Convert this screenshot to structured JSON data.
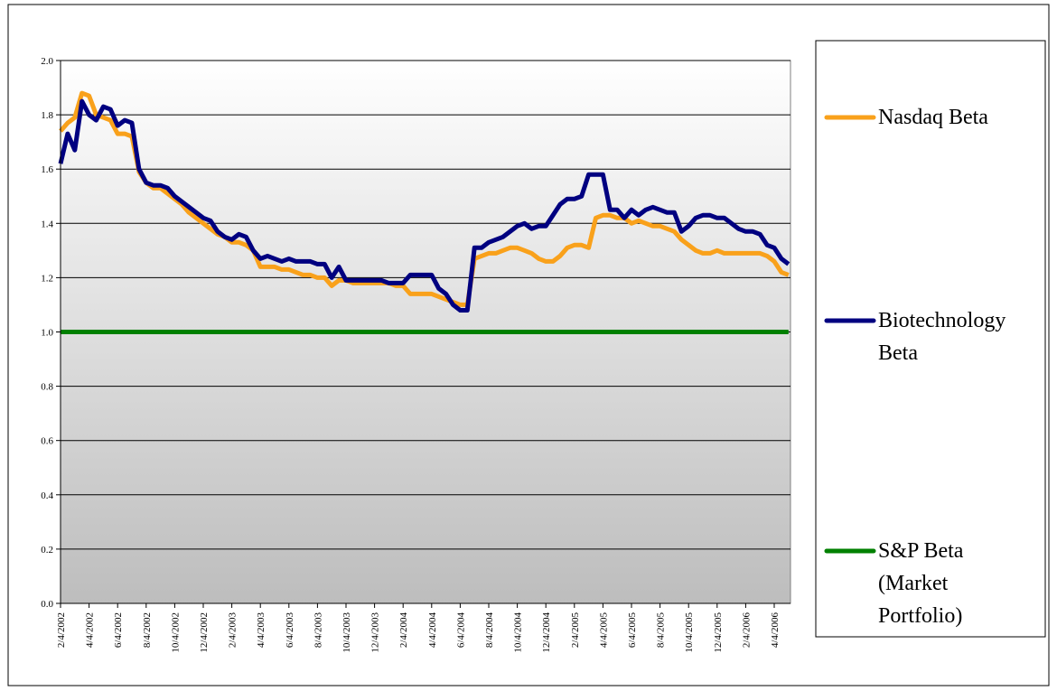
{
  "chart_data": {
    "type": "line",
    "categories": [
      "2/4/2002",
      null,
      null,
      null,
      "4/4/2002",
      null,
      null,
      null,
      "6/4/2002",
      null,
      null,
      null,
      "8/4/2002",
      null,
      null,
      null,
      "10/4/2002",
      null,
      null,
      null,
      "12/4/2002",
      null,
      null,
      null,
      "2/4/2003",
      null,
      null,
      null,
      "4/4/2003",
      null,
      null,
      null,
      "6/4/2003",
      null,
      null,
      null,
      "8/4/2003",
      null,
      null,
      null,
      "10/4/2003",
      null,
      null,
      null,
      "12/4/2003",
      null,
      null,
      null,
      "2/4/2004",
      null,
      null,
      null,
      "4/4/2004",
      null,
      null,
      null,
      "6/4/2004",
      null,
      null,
      null,
      "8/4/2004",
      null,
      null,
      null,
      "10/4/2004",
      null,
      null,
      null,
      "12/4/2004",
      null,
      null,
      null,
      "2/4/2005",
      null,
      null,
      null,
      "4/4/2005",
      null,
      null,
      null,
      "6/4/2005",
      null,
      null,
      null,
      "8/4/2005",
      null,
      null,
      null,
      "10/4/2005",
      null,
      null,
      null,
      "12/4/2005",
      null,
      null,
      null,
      "2/4/2006",
      null,
      null,
      null,
      "4/4/2006",
      null,
      null
    ],
    "series": [
      {
        "name": "Nasdaq Beta",
        "color": "#f9a11b",
        "values": [
          1.74,
          1.77,
          1.79,
          1.88,
          1.87,
          1.8,
          1.79,
          1.78,
          1.73,
          1.73,
          1.72,
          1.59,
          1.55,
          1.53,
          1.53,
          1.51,
          1.49,
          1.47,
          1.44,
          1.42,
          1.4,
          1.38,
          1.36,
          1.35,
          1.33,
          1.33,
          1.32,
          1.3,
          1.24,
          1.24,
          1.24,
          1.23,
          1.23,
          1.22,
          1.21,
          1.21,
          1.2,
          1.2,
          1.17,
          1.19,
          1.19,
          1.18,
          1.18,
          1.18,
          1.18,
          1.18,
          1.18,
          1.17,
          1.17,
          1.14,
          1.14,
          1.14,
          1.14,
          1.13,
          1.12,
          1.11,
          1.1,
          1.1,
          1.27,
          1.28,
          1.29,
          1.29,
          1.3,
          1.31,
          1.31,
          1.3,
          1.29,
          1.27,
          1.26,
          1.26,
          1.28,
          1.31,
          1.32,
          1.32,
          1.31,
          1.42,
          1.43,
          1.43,
          1.42,
          1.42,
          1.4,
          1.41,
          1.4,
          1.39,
          1.39,
          1.38,
          1.37,
          1.34,
          1.32,
          1.3,
          1.29,
          1.29,
          1.3,
          1.29,
          1.29,
          1.29,
          1.29,
          1.29,
          1.29,
          1.28,
          1.26,
          1.22,
          1.21
        ]
      },
      {
        "name": "Biotechnology Beta",
        "color": "#000080",
        "values": [
          1.62,
          1.73,
          1.67,
          1.85,
          1.8,
          1.78,
          1.83,
          1.82,
          1.76,
          1.78,
          1.77,
          1.6,
          1.55,
          1.54,
          1.54,
          1.53,
          1.5,
          1.48,
          1.46,
          1.44,
          1.42,
          1.41,
          1.37,
          1.35,
          1.34,
          1.36,
          1.35,
          1.3,
          1.27,
          1.28,
          1.27,
          1.26,
          1.27,
          1.26,
          1.26,
          1.26,
          1.25,
          1.25,
          1.2,
          1.24,
          1.19,
          1.19,
          1.19,
          1.19,
          1.19,
          1.19,
          1.18,
          1.18,
          1.18,
          1.21,
          1.21,
          1.21,
          1.21,
          1.16,
          1.14,
          1.1,
          1.08,
          1.08,
          1.31,
          1.31,
          1.33,
          1.34,
          1.35,
          1.37,
          1.39,
          1.4,
          1.38,
          1.39,
          1.39,
          1.43,
          1.47,
          1.49,
          1.49,
          1.5,
          1.58,
          1.58,
          1.58,
          1.45,
          1.45,
          1.42,
          1.45,
          1.43,
          1.45,
          1.46,
          1.45,
          1.44,
          1.44,
          1.37,
          1.39,
          1.42,
          1.43,
          1.43,
          1.42,
          1.42,
          1.4,
          1.38,
          1.37,
          1.37,
          1.36,
          1.32,
          1.31,
          1.27,
          1.25
        ]
      },
      {
        "name": "S&P Beta (Market Portfolio)",
        "color": "#008000",
        "values": [
          1,
          1,
          1,
          1,
          1,
          1,
          1,
          1,
          1,
          1,
          1,
          1,
          1,
          1,
          1,
          1,
          1,
          1,
          1,
          1,
          1,
          1,
          1,
          1,
          1,
          1,
          1,
          1,
          1,
          1,
          1,
          1,
          1,
          1,
          1,
          1,
          1,
          1,
          1,
          1,
          1,
          1,
          1,
          1,
          1,
          1,
          1,
          1,
          1,
          1,
          1,
          1,
          1,
          1,
          1,
          1,
          1,
          1,
          1,
          1,
          1,
          1,
          1,
          1,
          1,
          1,
          1,
          1,
          1,
          1,
          1,
          1,
          1,
          1,
          1,
          1,
          1,
          1,
          1,
          1,
          1,
          1,
          1,
          1,
          1,
          1,
          1,
          1,
          1,
          1,
          1,
          1,
          1,
          1,
          1,
          1,
          1,
          1,
          1,
          1,
          1,
          1,
          1
        ]
      }
    ],
    "ylim": [
      0,
      2
    ],
    "yticks": [
      {
        "value": 0,
        "label": "0.0"
      },
      {
        "value": 0.2,
        "label": "0.2"
      },
      {
        "value": 0.4,
        "label": "0.4"
      },
      {
        "value": 0.6,
        "label": "0.6"
      },
      {
        "value": 0.8,
        "label": "0.8"
      },
      {
        "value": 1,
        "label": "1.0"
      },
      {
        "value": 1.2,
        "label": "1.2"
      },
      {
        "value": 1.4,
        "label": "1.4"
      },
      {
        "value": 1.6,
        "label": "1.6"
      },
      {
        "value": 1.8,
        "label": "1.8"
      },
      {
        "value": 2,
        "label": "2.0"
      }
    ],
    "grid": true,
    "legend": "right"
  }
}
